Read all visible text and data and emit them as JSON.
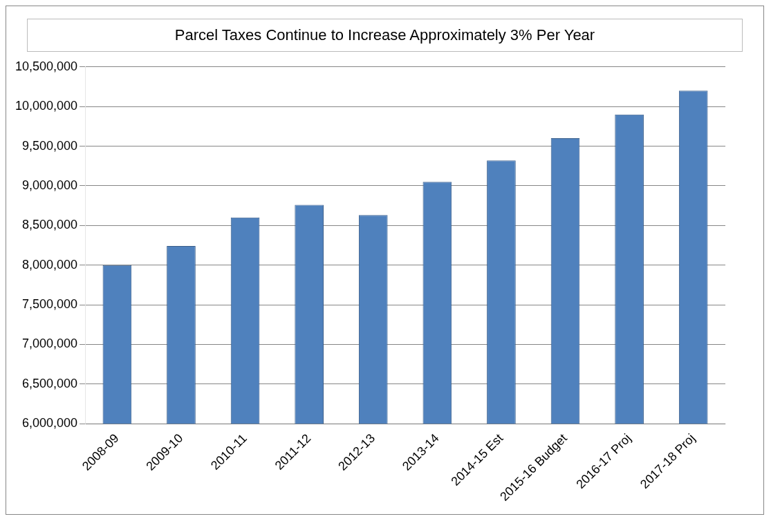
{
  "chart_data": {
    "type": "bar",
    "title": "Parcel Taxes Continue to Increase Approximately 3% Per Year",
    "categories": [
      "2008-09",
      "2009-10",
      "2010-11",
      "2011-12",
      "2012-13",
      "2013-14",
      "2014-15 Est",
      "2015-16 Budget",
      "2016-17 Proj",
      "2017-18 Proj"
    ],
    "values": [
      8000000,
      8240000,
      8600000,
      8760000,
      8630000,
      9050000,
      9320000,
      9600000,
      9900000,
      10200000
    ],
    "color": "#4f81bd",
    "ylim": [
      6000000,
      10500000
    ],
    "yticks": [
      {
        "value": 6000000,
        "label": "6,000,000"
      },
      {
        "value": 6500000,
        "label": "6,500,000"
      },
      {
        "value": 7000000,
        "label": "7,000,000"
      },
      {
        "value": 7500000,
        "label": "7,500,000"
      },
      {
        "value": 8000000,
        "label": "8,000,000"
      },
      {
        "value": 8500000,
        "label": "8,500,000"
      },
      {
        "value": 9000000,
        "label": "9,000,000"
      },
      {
        "value": 9500000,
        "label": "9,500,000"
      },
      {
        "value": 10000000,
        "label": "10,000,000"
      },
      {
        "value": 10500000,
        "label": "10,500,000"
      }
    ],
    "grid": "y"
  }
}
